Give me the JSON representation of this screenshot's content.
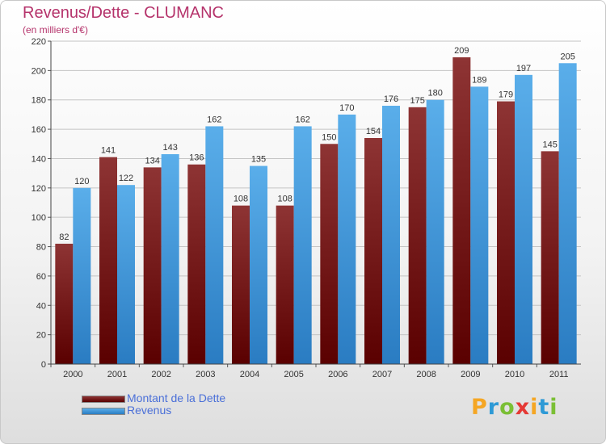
{
  "title": "Revenus/Dette - CLUMANC",
  "subtitle": "(en milliers d'€)",
  "logo": {
    "text": "Proxiti",
    "letters": [
      "P",
      "r",
      "o",
      "x",
      "i",
      "t",
      "i"
    ],
    "colors": [
      "#f5a623",
      "#2e9ad6",
      "#7bbf35",
      "#e53935",
      "#f5a623",
      "#2e9ad6",
      "#7bbf35"
    ]
  },
  "legend": {
    "items": [
      {
        "label": "Montant de la Dette",
        "color": "#7a1c1c"
      },
      {
        "label": "Revenus",
        "color": "#4a9fe0"
      }
    ]
  },
  "chart_data": {
    "type": "bar",
    "title": "Revenus/Dette - CLUMANC",
    "subtitle": "(en milliers d'€)",
    "categories": [
      "2000",
      "2001",
      "2002",
      "2003",
      "2004",
      "2005",
      "2006",
      "2007",
      "2008",
      "2009",
      "2010",
      "2011"
    ],
    "series": [
      {
        "name": "Montant de la Dette",
        "color": "#7a1c1c",
        "values": [
          82,
          141,
          134,
          136,
          108,
          108,
          150,
          154,
          175,
          209,
          179,
          145
        ]
      },
      {
        "name": "Revenus",
        "color": "#4a9fe0",
        "values": [
          120,
          122,
          143,
          162,
          135,
          162,
          170,
          176,
          180,
          189,
          197,
          205
        ]
      }
    ],
    "yticks": [
      0,
      20,
      40,
      60,
      80,
      100,
      120,
      140,
      160,
      180,
      200,
      220
    ],
    "ylim": [
      0,
      220
    ],
    "grid": true,
    "legend_position": "bottom-left"
  }
}
